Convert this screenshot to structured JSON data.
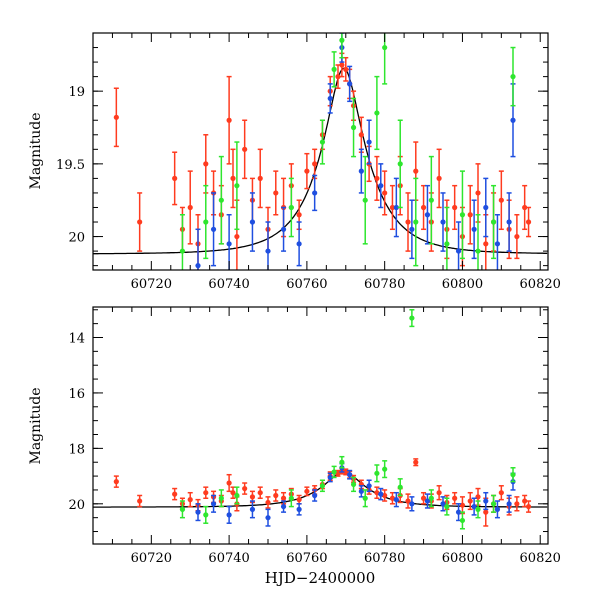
{
  "chart_data": [
    {
      "type": "scatter",
      "title": "",
      "xlabel": "",
      "ylabel": "Magnitude",
      "xlim": [
        60705,
        60822
      ],
      "ylim": [
        20.23,
        18.6
      ],
      "y_inverted": true,
      "grid": false,
      "x_ticks": [
        "60720",
        "60740",
        "60760",
        "60780",
        "60800",
        "60820"
      ],
      "y_ticks": [
        "19",
        "19.5",
        "20"
      ],
      "model_curve": {
        "t0": 60769.5,
        "u0": 0.32,
        "tE": 12.0,
        "base": 20.12,
        "color": "#000000"
      },
      "series": [
        {
          "color": "#ff3b1f",
          "points": [
            [
              60711,
              19.18,
              0.2
            ],
            [
              60717,
              19.9,
              0.2
            ],
            [
              60726,
              19.6,
              0.18
            ],
            [
              60728,
              19.95,
              0.15
            ],
            [
              60730,
              19.8,
              0.25
            ],
            [
              60732,
              20.05,
              0.2
            ],
            [
              60734,
              19.5,
              0.2
            ],
            [
              60736,
              19.7,
              0.15
            ],
            [
              60738,
              19.85,
              0.2
            ],
            [
              60740,
              19.2,
              0.3
            ],
            [
              60741,
              19.6,
              0.2
            ],
            [
              60742,
              20.0,
              0.25
            ],
            [
              60744,
              19.4,
              0.2
            ],
            [
              60746,
              19.75,
              0.15
            ],
            [
              60748,
              19.6,
              0.2
            ],
            [
              60750,
              19.95,
              0.15
            ],
            [
              60752,
              19.7,
              0.15
            ],
            [
              60754,
              19.8,
              0.2
            ],
            [
              60756,
              19.65,
              0.15
            ],
            [
              60758,
              19.85,
              0.1
            ],
            [
              60760,
              19.55,
              0.12
            ],
            [
              60762,
              19.5,
              0.1
            ],
            [
              60764,
              19.3,
              0.1
            ],
            [
              60766,
              19.0,
              0.1
            ],
            [
              60768,
              18.9,
              0.08
            ],
            [
              60769,
              18.82,
              0.08
            ],
            [
              60770,
              18.85,
              0.08
            ],
            [
              60771,
              18.95,
              0.1
            ],
            [
              60772,
              19.1,
              0.1
            ],
            [
              60774,
              19.3,
              0.12
            ],
            [
              60776,
              19.5,
              0.12
            ],
            [
              60778,
              19.6,
              0.15
            ],
            [
              60780,
              19.7,
              0.15
            ],
            [
              60782,
              19.8,
              0.15
            ],
            [
              60784,
              19.65,
              0.2
            ],
            [
              60786,
              19.9,
              0.2
            ],
            [
              60788,
              19.55,
              0.2
            ],
            [
              60790,
              19.8,
              0.15
            ],
            [
              60792,
              19.9,
              0.2
            ],
            [
              60794,
              19.6,
              0.2
            ],
            [
              60796,
              19.95,
              0.2
            ],
            [
              60798,
              19.8,
              0.15
            ],
            [
              60800,
              20.0,
              0.2
            ],
            [
              60802,
              19.85,
              0.2
            ],
            [
              60804,
              19.7,
              0.2
            ],
            [
              60806,
              20.05,
              0.2
            ],
            [
              60808,
              19.9,
              0.2
            ],
            [
              60810,
              19.75,
              0.2
            ],
            [
              60812,
              19.95,
              0.2
            ],
            [
              60814,
              20.0,
              0.15
            ],
            [
              60816,
              19.8,
              0.15
            ],
            [
              60817,
              19.9,
              0.1
            ]
          ]
        },
        {
          "color": "#1f4fe0",
          "points": [
            [
              60732,
              20.2,
              0.25
            ],
            [
              60736,
              19.95,
              0.25
            ],
            [
              60740,
              20.05,
              0.2
            ],
            [
              60746,
              19.9,
              0.2
            ],
            [
              60750,
              20.1,
              0.2
            ],
            [
              60754,
              19.95,
              0.15
            ],
            [
              60758,
              20.05,
              0.15
            ],
            [
              60762,
              19.7,
              0.12
            ],
            [
              60766,
              19.05,
              0.1
            ],
            [
              60769,
              18.7,
              0.1
            ],
            [
              60771,
              18.95,
              0.12
            ],
            [
              60774,
              19.55,
              0.15
            ],
            [
              60776,
              19.35,
              0.15
            ],
            [
              60779,
              19.65,
              0.15
            ],
            [
              60783,
              19.8,
              0.2
            ],
            [
              60787,
              19.95,
              0.2
            ],
            [
              60791,
              19.85,
              0.2
            ],
            [
              60795,
              19.9,
              0.2
            ],
            [
              60799,
              20.1,
              0.2
            ],
            [
              60803,
              19.95,
              0.2
            ],
            [
              60806,
              19.8,
              0.2
            ],
            [
              60809,
              20.05,
              0.2
            ],
            [
              60812,
              19.9,
              0.2
            ],
            [
              60813,
              19.2,
              0.25
            ]
          ]
        },
        {
          "color": "#2ee62e",
          "points": [
            [
              60728,
              20.1,
              0.25
            ],
            [
              60734,
              19.9,
              0.25
            ],
            [
              60738,
              19.75,
              0.3
            ],
            [
              60742,
              19.65,
              0.3
            ],
            [
              60756,
              19.8,
              0.2
            ],
            [
              60764,
              19.35,
              0.15
            ],
            [
              60767,
              18.85,
              0.12
            ],
            [
              60769,
              18.65,
              0.12
            ],
            [
              60772,
              19.25,
              0.2
            ],
            [
              60775,
              19.75,
              0.3
            ],
            [
              60778,
              19.15,
              0.25
            ],
            [
              60780,
              18.7,
              0.25
            ],
            [
              60784,
              19.5,
              0.3
            ],
            [
              60788,
              19.9,
              0.3
            ],
            [
              60792,
              19.75,
              0.3
            ],
            [
              60796,
              20.05,
              0.25
            ],
            [
              60800,
              19.85,
              0.3
            ],
            [
              60804,
              20.1,
              0.25
            ],
            [
              60808,
              19.9,
              0.25
            ],
            [
              60813,
              18.9,
              0.2
            ]
          ]
        }
      ]
    },
    {
      "type": "scatter",
      "title": "",
      "xlabel": "HJD−2400000",
      "ylabel": "Magnitude",
      "xlim": [
        60705,
        60822
      ],
      "ylim": [
        21.45,
        12.9
      ],
      "y_inverted": true,
      "grid": false,
      "x_ticks": [
        "60720",
        "60740",
        "60760",
        "60780",
        "60800",
        "60820"
      ],
      "y_ticks": [
        "14",
        "16",
        "18",
        "20"
      ],
      "model_curve": {
        "t0": 60769.5,
        "u0": 0.32,
        "tE": 12.0,
        "base": 20.12,
        "color": "#000000"
      },
      "series": [
        {
          "color": "#ff3b1f",
          "points": [
            [
              60711,
              19.2,
              0.2
            ],
            [
              60717,
              19.9,
              0.2
            ],
            [
              60726,
              19.65,
              0.2
            ],
            [
              60728,
              20.0,
              0.2
            ],
            [
              60730,
              19.85,
              0.25
            ],
            [
              60732,
              20.05,
              0.2
            ],
            [
              60734,
              19.6,
              0.2
            ],
            [
              60736,
              19.75,
              0.2
            ],
            [
              60738,
              19.9,
              0.2
            ],
            [
              60740,
              19.25,
              0.3
            ],
            [
              60741,
              19.6,
              0.2
            ],
            [
              60742,
              20.0,
              0.25
            ],
            [
              60744,
              19.45,
              0.2
            ],
            [
              60746,
              19.75,
              0.2
            ],
            [
              60748,
              19.6,
              0.2
            ],
            [
              60750,
              19.95,
              0.2
            ],
            [
              60752,
              19.7,
              0.2
            ],
            [
              60754,
              19.8,
              0.2
            ],
            [
              60756,
              19.65,
              0.2
            ],
            [
              60758,
              19.85,
              0.15
            ],
            [
              60760,
              19.55,
              0.15
            ],
            [
              60762,
              19.5,
              0.15
            ],
            [
              60764,
              19.3,
              0.15
            ],
            [
              60766,
              19.0,
              0.15
            ],
            [
              60768,
              18.9,
              0.1
            ],
            [
              60769,
              18.82,
              0.1
            ],
            [
              60770,
              18.85,
              0.1
            ],
            [
              60771,
              18.95,
              0.12
            ],
            [
              60772,
              19.1,
              0.12
            ],
            [
              60774,
              19.3,
              0.15
            ],
            [
              60776,
              19.5,
              0.15
            ],
            [
              60778,
              19.6,
              0.2
            ],
            [
              60780,
              19.7,
              0.2
            ],
            [
              60782,
              19.8,
              0.2
            ],
            [
              60784,
              19.7,
              0.25
            ],
            [
              60786,
              19.9,
              0.25
            ],
            [
              60788,
              18.5,
              0.12
            ],
            [
              60790,
              19.8,
              0.2
            ],
            [
              60792,
              19.9,
              0.25
            ],
            [
              60794,
              19.6,
              0.25
            ],
            [
              60796,
              19.95,
              0.25
            ],
            [
              60798,
              19.8,
              0.2
            ],
            [
              60800,
              20.05,
              0.3
            ],
            [
              60802,
              19.9,
              0.3
            ],
            [
              60804,
              19.75,
              0.3
            ],
            [
              60806,
              20.3,
              0.5
            ],
            [
              60808,
              20.0,
              0.3
            ],
            [
              60810,
              19.6,
              0.25
            ],
            [
              60812,
              20.1,
              0.3
            ],
            [
              60814,
              20.0,
              0.25
            ],
            [
              60816,
              19.9,
              0.2
            ],
            [
              60817,
              20.1,
              0.2
            ]
          ]
        },
        {
          "color": "#1f4fe0",
          "points": [
            [
              60732,
              20.3,
              0.3
            ],
            [
              60736,
              20.0,
              0.3
            ],
            [
              60740,
              20.4,
              0.3
            ],
            [
              60746,
              20.2,
              0.3
            ],
            [
              60750,
              20.5,
              0.3
            ],
            [
              60754,
              20.1,
              0.2
            ],
            [
              60758,
              20.2,
              0.2
            ],
            [
              60762,
              19.7,
              0.2
            ],
            [
              60766,
              19.05,
              0.15
            ],
            [
              60769,
              18.7,
              0.15
            ],
            [
              60771,
              18.95,
              0.15
            ],
            [
              60774,
              19.55,
              0.2
            ],
            [
              60776,
              19.35,
              0.2
            ],
            [
              60779,
              19.65,
              0.2
            ],
            [
              60783,
              19.85,
              0.25
            ],
            [
              60787,
              20.0,
              0.25
            ],
            [
              60791,
              19.9,
              0.25
            ],
            [
              60795,
              20.0,
              0.25
            ],
            [
              60799,
              20.3,
              0.3
            ],
            [
              60803,
              20.1,
              0.3
            ],
            [
              60806,
              19.9,
              0.3
            ],
            [
              60809,
              20.2,
              0.3
            ],
            [
              60812,
              20.0,
              0.3
            ],
            [
              60813,
              19.2,
              0.3
            ]
          ]
        },
        {
          "color": "#2ee62e",
          "points": [
            [
              60728,
              20.2,
              0.3
            ],
            [
              60734,
              20.4,
              0.3
            ],
            [
              60738,
              19.8,
              0.3
            ],
            [
              60742,
              19.7,
              0.3
            ],
            [
              60756,
              19.8,
              0.3
            ],
            [
              60764,
              19.35,
              0.2
            ],
            [
              60767,
              18.85,
              0.2
            ],
            [
              60769,
              18.5,
              0.2
            ],
            [
              60772,
              19.3,
              0.25
            ],
            [
              60775,
              19.8,
              0.3
            ],
            [
              60778,
              18.9,
              0.3
            ],
            [
              60780,
              18.75,
              0.3
            ],
            [
              60784,
              19.4,
              0.3
            ],
            [
              60787,
              13.3,
              0.3
            ],
            [
              60792,
              19.8,
              0.3
            ],
            [
              60796,
              20.1,
              0.3
            ],
            [
              60800,
              20.6,
              0.3
            ],
            [
              60804,
              20.2,
              0.3
            ],
            [
              60808,
              20.0,
              0.3
            ],
            [
              60813,
              18.95,
              0.25
            ]
          ]
        }
      ]
    }
  ]
}
